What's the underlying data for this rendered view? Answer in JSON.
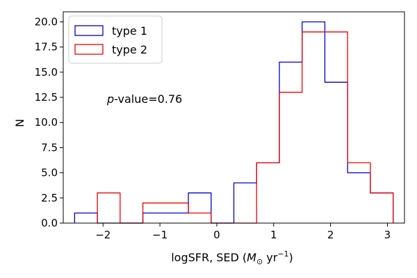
{
  "chart_data": {
    "type": "bar",
    "histtype": "step",
    "xlabel": "logSFR, SED (M⊙ yr⁻¹)",
    "xlabel_parts": {
      "prefix": "logSFR, SED (",
      "unit_symbol": "M",
      "unit_sub": "⊙",
      "unit_rest": " yr",
      "exp": "−1",
      "suffix": ")"
    },
    "ylabel": "N",
    "xlim": [
      -2.7,
      3.3
    ],
    "ylim": [
      0,
      21
    ],
    "xticks": [
      -2,
      -1,
      0,
      1,
      2,
      3
    ],
    "xtick_labels": [
      "−2",
      "−1",
      "0",
      "1",
      "2",
      "3"
    ],
    "yticks": [
      0,
      2.5,
      5,
      7.5,
      10,
      12.5,
      15,
      17.5,
      20
    ],
    "ytick_labels": [
      "0.0",
      "2.5",
      "5.0",
      "7.5",
      "10.0",
      "12.5",
      "15.0",
      "17.5",
      "20.0"
    ],
    "legend_position": "top-left",
    "annotation": {
      "italic": "p",
      "rest": "-value=0.76"
    },
    "series": [
      {
        "name": "type 1",
        "color": "#0000cc",
        "bin_edges": [
          -2.5,
          -2.1,
          -1.7,
          -1.3,
          -0.9,
          -0.5,
          -0.1,
          0.3,
          0.7,
          1.1,
          1.5,
          1.9,
          2.3,
          2.7,
          3.1
        ],
        "values": [
          1,
          0,
          0,
          1,
          1,
          3,
          0,
          4,
          6,
          16,
          20,
          14,
          5,
          3
        ]
      },
      {
        "name": "type 2",
        "color": "#ee0000",
        "bin_edges": [
          -2.1,
          -1.7,
          -1.3,
          -0.9,
          -0.5,
          -0.1,
          0.3,
          0.7,
          1.1,
          1.5,
          1.9,
          2.3,
          2.7,
          3.1
        ],
        "values": [
          3,
          0,
          2,
          2,
          1,
          0,
          0,
          6,
          13,
          19,
          19,
          6,
          3
        ]
      }
    ]
  }
}
